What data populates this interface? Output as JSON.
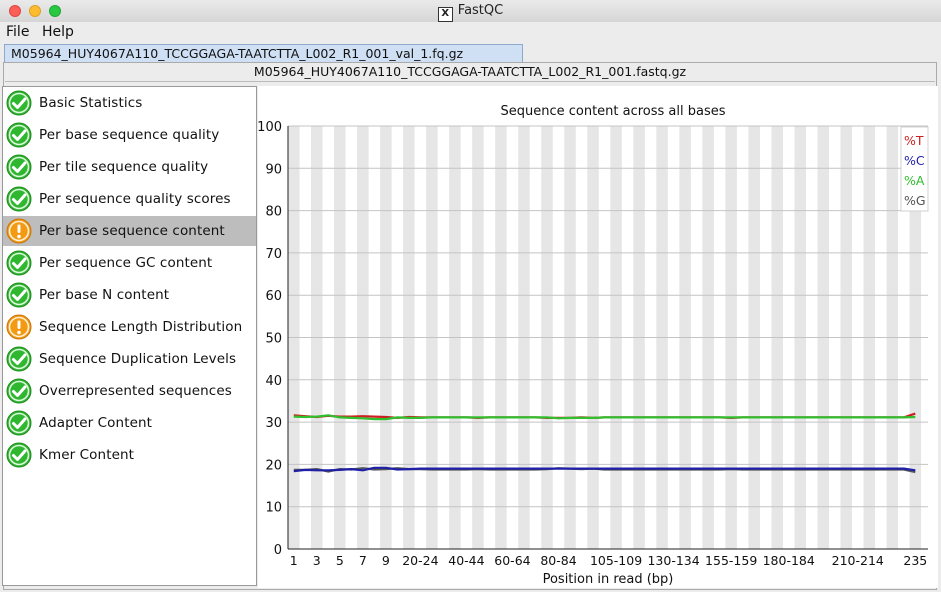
{
  "window": {
    "title": "FastQC",
    "x_badge": "X"
  },
  "menu": [
    {
      "label": "File"
    },
    {
      "label": "Help"
    }
  ],
  "file_tab": {
    "label": "M05964_HUY4067A110_TCCGGAGA-TAATCTTA_L002_R1_001_val_1.fq.gz"
  },
  "report_title": "M05964_HUY4067A110_TCCGGAGA-TAATCTTA_L002_R1_001.fastq.gz",
  "modules": [
    {
      "label": "Basic Statistics",
      "status": "pass"
    },
    {
      "label": "Per base sequence quality",
      "status": "pass"
    },
    {
      "label": "Per tile sequence quality",
      "status": "pass"
    },
    {
      "label": "Per sequence quality scores",
      "status": "pass"
    },
    {
      "label": "Per base sequence content",
      "status": "warn",
      "selected": true
    },
    {
      "label": "Per sequence GC content",
      "status": "pass"
    },
    {
      "label": "Per base N content",
      "status": "pass"
    },
    {
      "label": "Sequence Length Distribution",
      "status": "warn"
    },
    {
      "label": "Sequence Duplication Levels",
      "status": "pass"
    },
    {
      "label": "Overrepresented sequences",
      "status": "pass"
    },
    {
      "label": "Adapter Content",
      "status": "pass"
    },
    {
      "label": "Kmer Content",
      "status": "pass"
    }
  ],
  "icons": {
    "pass": "check-circle-icon",
    "warn": "exclamation-circle-icon"
  },
  "colors": {
    "pass": "#2fb82f",
    "warn": "#f39a12",
    "T": "#cc1f1f",
    "C": "#1f1fa8",
    "A": "#2fbf2f",
    "G": "#555555"
  },
  "chart_data": {
    "type": "line",
    "title": "Sequence content across all bases",
    "xlabel": "Position in read (bp)",
    "ylabel": "",
    "ylim": [
      0,
      100
    ],
    "yticks": [
      0,
      10,
      20,
      30,
      40,
      50,
      60,
      70,
      80,
      90,
      100
    ],
    "categories": [
      "1",
      "2",
      "3",
      "4",
      "5",
      "6",
      "7",
      "8",
      "9",
      "10-14",
      "15-19",
      "20-24",
      "25-29",
      "30-34",
      "35-39",
      "40-44",
      "45-49",
      "50-54",
      "55-59",
      "60-64",
      "65-69",
      "70-74",
      "75-79",
      "80-84",
      "85-89",
      "90-94",
      "95-99",
      "100-104",
      "105-109",
      "110-114",
      "115-119",
      "120-124",
      "125-129",
      "130-134",
      "135-139",
      "140-144",
      "145-149",
      "150-154",
      "155-159",
      "160-164",
      "165-169",
      "170-174",
      "175-179",
      "180-184",
      "185-189",
      "190-194",
      "195-199",
      "200-204",
      "205-209",
      "210-214",
      "215-219",
      "220-224",
      "225-229",
      "230-234",
      "235"
    ],
    "xtick_labels": [
      "1",
      "3",
      "5",
      "7",
      "9",
      "20-24",
      "40-44",
      "60-64",
      "80-84",
      "105-109",
      "130-134",
      "155-159",
      "180-184",
      "210-214",
      "235"
    ],
    "legend_position": "top-right",
    "series": [
      {
        "name": "%T",
        "values": [
          31.6,
          31.4,
          31.2,
          31.5,
          31.3,
          31.3,
          31.4,
          31.3,
          31.2,
          31.0,
          31.2,
          31.1,
          31.1,
          31.1,
          31.1,
          31.1,
          31.0,
          31.1,
          31.1,
          31.1,
          31.1,
          31.1,
          31.0,
          31.0,
          31.0,
          31.1,
          31.0,
          31.1,
          31.1,
          31.1,
          31.1,
          31.1,
          31.1,
          31.1,
          31.1,
          31.1,
          31.1,
          31.1,
          31.0,
          31.1,
          31.1,
          31.1,
          31.1,
          31.1,
          31.1,
          31.1,
          31.1,
          31.1,
          31.1,
          31.1,
          31.1,
          31.1,
          31.1,
          31.1,
          32.0
        ]
      },
      {
        "name": "%C",
        "values": [
          18.4,
          18.7,
          18.6,
          18.6,
          18.7,
          18.9,
          18.6,
          19.2,
          19.2,
          18.8,
          18.9,
          19.0,
          19.0,
          19.0,
          19.0,
          19.0,
          19.0,
          19.0,
          19.0,
          19.0,
          19.0,
          19.0,
          19.0,
          19.0,
          19.0,
          19.0,
          19.0,
          19.0,
          19.0,
          19.0,
          19.0,
          19.0,
          19.0,
          19.0,
          19.0,
          19.0,
          19.0,
          19.0,
          19.0,
          19.0,
          19.0,
          19.0,
          19.0,
          19.0,
          19.0,
          19.0,
          19.0,
          19.0,
          19.0,
          19.0,
          19.0,
          19.0,
          19.0,
          19.0,
          18.6
        ]
      },
      {
        "name": "%A",
        "values": [
          31.3,
          31.2,
          31.3,
          31.6,
          31.1,
          31.0,
          30.9,
          30.7,
          30.7,
          31.1,
          31.0,
          31.0,
          31.1,
          31.1,
          31.1,
          31.1,
          31.1,
          31.1,
          31.1,
          31.1,
          31.1,
          31.1,
          31.1,
          30.9,
          31.0,
          31.0,
          31.0,
          31.1,
          31.1,
          31.1,
          31.1,
          31.1,
          31.1,
          31.1,
          31.1,
          31.1,
          31.1,
          31.1,
          31.1,
          31.1,
          31.1,
          31.1,
          31.1,
          31.1,
          31.1,
          31.1,
          31.1,
          31.1,
          31.1,
          31.1,
          31.1,
          31.1,
          31.1,
          31.1,
          31.2
        ]
      },
      {
        "name": "%G",
        "values": [
          18.7,
          18.7,
          18.9,
          18.3,
          18.9,
          18.8,
          19.1,
          18.8,
          18.9,
          19.1,
          18.9,
          18.9,
          18.8,
          18.8,
          18.8,
          18.8,
          18.9,
          18.8,
          18.8,
          18.8,
          18.8,
          18.8,
          18.9,
          19.1,
          19.0,
          18.9,
          19.0,
          18.8,
          18.8,
          18.8,
          18.8,
          18.8,
          18.8,
          18.8,
          18.8,
          18.8,
          18.8,
          18.8,
          18.9,
          18.8,
          18.8,
          18.8,
          18.8,
          18.8,
          18.8,
          18.8,
          18.8,
          18.8,
          18.8,
          18.8,
          18.8,
          18.8,
          18.8,
          18.8,
          18.2
        ]
      }
    ]
  }
}
